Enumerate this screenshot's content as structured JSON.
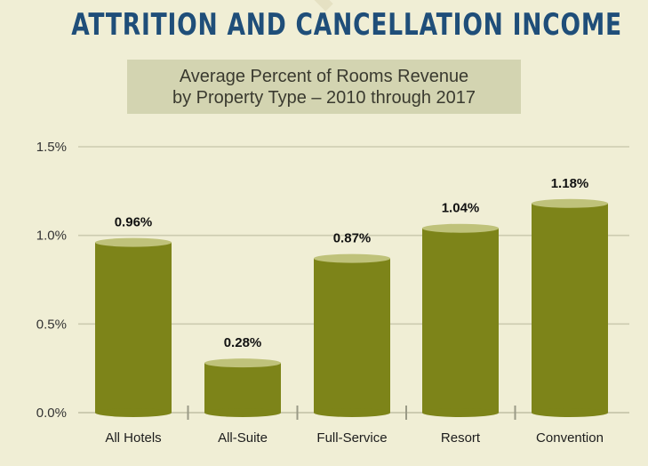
{
  "header": {
    "title": "ATTRITION AND CANCELLATION INCOME",
    "subtitle_line1": "Average Percent of Rooms Revenue",
    "subtitle_line2": "by Property Type – 2010 through 2017"
  },
  "colors": {
    "bar": "#7d8419",
    "bar_top": "#bfc27a",
    "grid": "#cccbb0",
    "background": "#f0eed5",
    "title": "#1f4e79",
    "subtitle_box": "#d3d4b1"
  },
  "chart_data": {
    "type": "bar",
    "title": "ATTRITION AND CANCELLATION INCOME",
    "subtitle": "Average Percent of Rooms Revenue by Property Type – 2010 through 2017",
    "categories": [
      "All Hotels",
      "All-Suite",
      "Full-Service",
      "Resort",
      "Convention"
    ],
    "values": [
      0.96,
      0.28,
      0.87,
      1.04,
      1.18
    ],
    "value_labels": [
      "0.96%",
      "0.28%",
      "0.87%",
      "1.04%",
      "1.18%"
    ],
    "yticks": [
      0.0,
      0.5,
      1.0,
      1.5
    ],
    "ytick_labels": [
      "0.0%",
      "0.5%",
      "1.0%",
      "1.5%"
    ],
    "ylim": [
      0,
      1.5
    ],
    "xlabel": "",
    "ylabel": "",
    "grid": true
  }
}
